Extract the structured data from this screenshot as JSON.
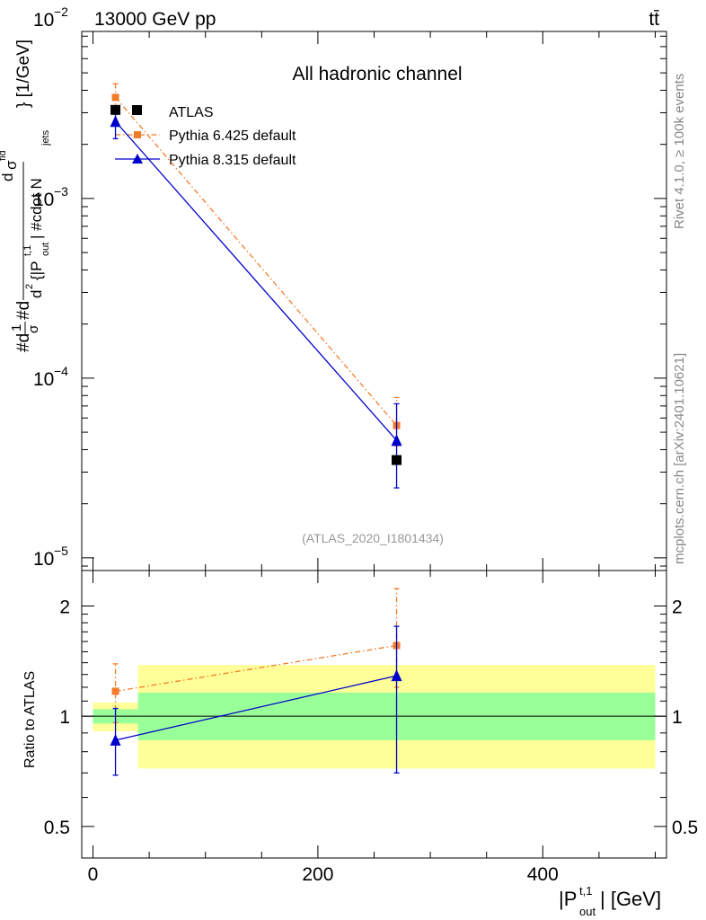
{
  "header": {
    "energy_label": "13000 GeV pp",
    "process_label": "tt̄"
  },
  "side_text": {
    "rivet": "Rivet 4.1.0, ≥ 100k events",
    "mcplots": "mcplots.cern.ch [arXiv:2401.10621]"
  },
  "chart_data": [
    {
      "type": "scatter",
      "panel": "main",
      "title": "All hadronic channel",
      "watermark": "(ATLAS_2020_I1801434)",
      "ylabel_text": "#d\\frac{1}{σ}#d\\frac{d^2σ^{fid}}{d^2{|P_out^{t,1}| #cdot N_jets}} [1/GeV]",
      "ylabel_parts": {
        "a": "#d",
        "b": "1",
        "c": "σ",
        "d": "#d",
        "e": "d",
        "f": "σ",
        "g": "fid",
        "h": "2",
        "i": "d",
        "j": "{|P",
        "k": "t,1",
        "l": "out",
        "m": "| #cdot N",
        "n": "jets",
        "o": "} [1/GeV]"
      },
      "yscale": "log",
      "ylim": [
        8.5e-06,
        0.0085
      ],
      "xlim": [
        -10,
        510
      ],
      "y_ticks": [
        {
          "value": 0.01,
          "base": "10",
          "exp": "−2"
        },
        {
          "value": 0.001,
          "base": "10",
          "exp": "−3"
        },
        {
          "value": 0.0001,
          "base": "10",
          "exp": "−4"
        },
        {
          "value": 1e-05,
          "base": "10",
          "exp": "−5"
        }
      ],
      "legend_position": "top-left",
      "legend": [
        {
          "label": "ATLAS",
          "marker": "square",
          "color": "#000000"
        },
        {
          "label": "Pythia 6.425 default",
          "marker": "square",
          "color": "#f47b2a",
          "line": "dash-dot"
        },
        {
          "label": "Pythia 8.315 default",
          "marker": "triangle",
          "color": "#0000cc",
          "line": "solid"
        }
      ],
      "series": [
        {
          "name": "ATLAS",
          "x": [
            20,
            270
          ],
          "y": [
            0.00311,
            3.5e-05
          ],
          "yerr_lo": [
            0.00311,
            3.5e-05
          ],
          "yerr_hi": [
            0.00311,
            3.5e-05
          ]
        },
        {
          "name": "Pythia 6.425 default",
          "x": [
            20,
            270
          ],
          "y": [
            0.00365,
            5.45e-05
          ],
          "yerr_lo": [
            0.003,
            4.2e-05
          ],
          "yerr_hi": [
            0.00435,
            7.8e-05
          ]
        },
        {
          "name": "Pythia 8.315 default",
          "x": [
            20,
            270
          ],
          "y": [
            0.00268,
            4.5e-05
          ],
          "yerr_lo": [
            0.00215,
            2.45e-05
          ],
          "yerr_hi": [
            0.00325,
            7.2e-05
          ]
        }
      ]
    },
    {
      "type": "scatter",
      "panel": "ratio",
      "ylabel": "Ratio to ATLAS",
      "xlabel_base": "|P",
      "xlabel_sup": "t,1",
      "xlabel_sub": "out",
      "xlabel_tail": "| [GeV]",
      "yscale": "log",
      "ylim": [
        0.41,
        2.5
      ],
      "xlim": [
        -10,
        510
      ],
      "x_ticks": [
        0,
        200,
        400
      ],
      "y_ticks": [
        {
          "value": 0.5,
          "label": "0.5"
        },
        {
          "value": 1,
          "label": "1"
        },
        {
          "value": 2,
          "label": "2"
        }
      ],
      "bands": [
        {
          "x0": 0,
          "x1": 40,
          "inner": [
            0.955,
            1.045
          ],
          "outer": [
            0.91,
            1.09
          ]
        },
        {
          "x0": 40,
          "x1": 500,
          "inner": [
            0.86,
            1.16
          ],
          "outer": [
            0.72,
            1.38
          ]
        }
      ],
      "band_colors": {
        "inner": "#99ff99",
        "outer": "#ffff99"
      },
      "series": [
        {
          "name": "Pythia 6.425 default",
          "x": [
            20,
            270
          ],
          "y": [
            1.17,
            1.56
          ],
          "yerr_lo": [
            0.96,
            1.2
          ],
          "yerr_hi": [
            1.39,
            2.23
          ]
        },
        {
          "name": "Pythia 8.315 default",
          "x": [
            20,
            270
          ],
          "y": [
            0.86,
            1.29
          ],
          "yerr_lo": [
            0.69,
            0.7
          ],
          "yerr_hi": [
            1.05,
            1.76
          ]
        }
      ]
    }
  ]
}
